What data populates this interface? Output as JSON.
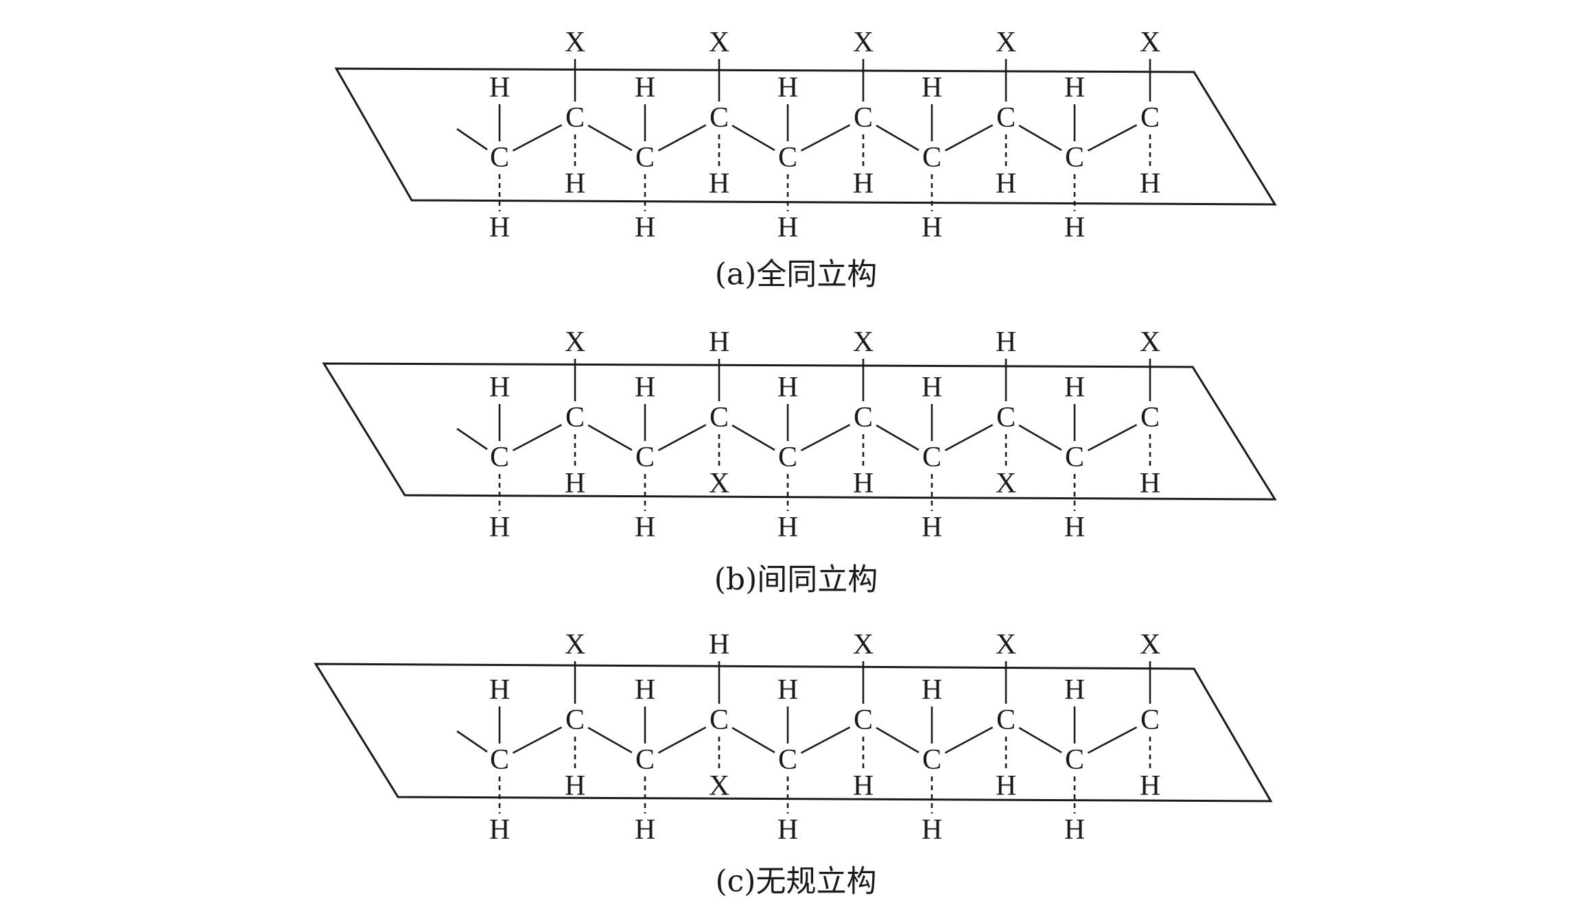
{
  "panels": [
    {
      "id": "a",
      "caption": "(a)全同立构",
      "methylene": {
        "up": "H",
        "down": "H",
        "carbon": "C"
      },
      "methine": [
        {
          "up": "X",
          "carbon": "C",
          "down": "H"
        },
        {
          "up": "X",
          "carbon": "C",
          "down": "H"
        },
        {
          "up": "X",
          "carbon": "C",
          "down": "H"
        },
        {
          "up": "X",
          "carbon": "C",
          "down": "H"
        },
        {
          "up": "X",
          "carbon": "C",
          "down": "H"
        }
      ]
    },
    {
      "id": "b",
      "caption": "(b)间同立构",
      "methylene": {
        "up": "H",
        "down": "H",
        "carbon": "C"
      },
      "methine": [
        {
          "up": "X",
          "carbon": "C",
          "down": "H"
        },
        {
          "up": "H",
          "carbon": "C",
          "down": "X"
        },
        {
          "up": "X",
          "carbon": "C",
          "down": "H"
        },
        {
          "up": "H",
          "carbon": "C",
          "down": "X"
        },
        {
          "up": "X",
          "carbon": "C",
          "down": "H"
        }
      ]
    },
    {
      "id": "c",
      "caption": "(c)无规立构",
      "methylene": {
        "up": "H",
        "down": "H",
        "carbon": "C"
      },
      "methine": [
        {
          "up": "X",
          "carbon": "C",
          "down": "H"
        },
        {
          "up": "H",
          "carbon": "C",
          "down": "X"
        },
        {
          "up": "X",
          "carbon": "C",
          "down": "H"
        },
        {
          "up": "X",
          "carbon": "C",
          "down": "H"
        },
        {
          "up": "X",
          "carbon": "C",
          "down": "H"
        }
      ]
    }
  ]
}
